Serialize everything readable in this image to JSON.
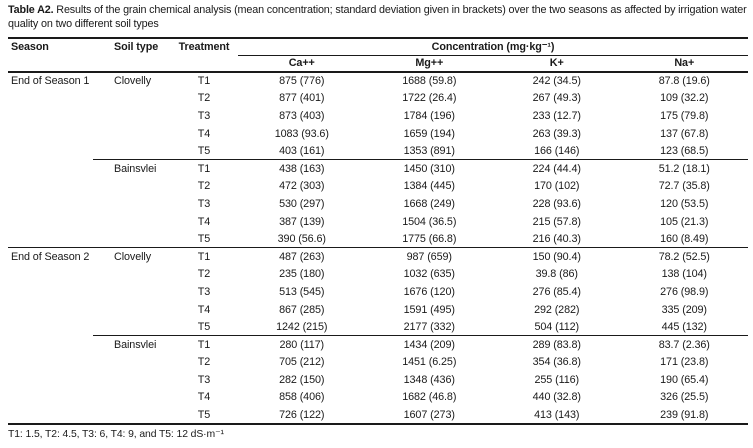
{
  "title": {
    "label": "Table A2.",
    "text": " Results of the grain chemical analysis (mean concentration; standard deviation given in brackets) over the two seasons as affected by irrigation water quality on two different soil types"
  },
  "table": {
    "headers": {
      "season": "Season",
      "soil_type": "Soil type",
      "treatment": "Treatment",
      "concentration": "Concentration (mg·kg⁻¹)",
      "analytes": [
        "Ca++",
        "Mg++",
        "K+",
        "Na+"
      ]
    },
    "groups": [
      {
        "season": "End of Season 1",
        "soil": "Clovelly",
        "divider": "none",
        "rows": [
          {
            "treatment": "T1",
            "ca": "875 (776)",
            "mg": "1688 (59.8)",
            "k": "242 (34.5)",
            "na": "87.8 (19.6)"
          },
          {
            "treatment": "T2",
            "ca": "877 (401)",
            "mg": "1722 (26.4)",
            "k": "267 (49.3)",
            "na": "109 (32.2)"
          },
          {
            "treatment": "T3",
            "ca": "873 (403)",
            "mg": "1784 (196)",
            "k": "233 (12.7)",
            "na": "175 (79.8)"
          },
          {
            "treatment": "T4",
            "ca": "1083 (93.6)",
            "mg": "1659 (194)",
            "k": "263 (39.3)",
            "na": "137 (67.8)"
          },
          {
            "treatment": "T5",
            "ca": "403 (161)",
            "mg": "1353 (891)",
            "k": "166 (146)",
            "na": "123 (68.5)"
          }
        ]
      },
      {
        "season": "",
        "soil": "Bainsvlei",
        "divider": "partial",
        "rows": [
          {
            "treatment": "T1",
            "ca": "438 (163)",
            "mg": "1450 (310)",
            "k": "224 (44.4)",
            "na": "51.2 (18.1)"
          },
          {
            "treatment": "T2",
            "ca": "472 (303)",
            "mg": "1384 (445)",
            "k": "170 (102)",
            "na": "72.7 (35.8)"
          },
          {
            "treatment": "T3",
            "ca": "530 (297)",
            "mg": "1668 (249)",
            "k": "228 (93.6)",
            "na": "120 (53.5)"
          },
          {
            "treatment": "T4",
            "ca": "387 (139)",
            "mg": "1504 (36.5)",
            "k": "215 (57.8)",
            "na": "105 (21.3)"
          },
          {
            "treatment": "T5",
            "ca": "390 (56.6)",
            "mg": "1775 (66.8)",
            "k": "216 (40.3)",
            "na": "160 (8.49)"
          }
        ]
      },
      {
        "season": "End of Season 2",
        "soil": "Clovelly",
        "divider": "full",
        "rows": [
          {
            "treatment": "T1",
            "ca": "487 (263)",
            "mg": "987 (659)",
            "k": "150 (90.4)",
            "na": "78.2 (52.5)"
          },
          {
            "treatment": "T2",
            "ca": "235 (180)",
            "mg": "1032 (635)",
            "k": "39.8 (86)",
            "na": "138 (104)"
          },
          {
            "treatment": "T3",
            "ca": "513 (545)",
            "mg": "1676 (120)",
            "k": "276 (85.4)",
            "na": "276 (98.9)"
          },
          {
            "treatment": "T4",
            "ca": "867 (285)",
            "mg": "1591 (495)",
            "k": "292 (282)",
            "na": "335 (209)"
          },
          {
            "treatment": "T5",
            "ca": "1242 (215)",
            "mg": "2177 (332)",
            "k": "504 (112)",
            "na": "445 (132)"
          }
        ]
      },
      {
        "season": "",
        "soil": "Bainsvlei",
        "divider": "partial",
        "rows": [
          {
            "treatment": "T1",
            "ca": "280 (117)",
            "mg": "1434 (209)",
            "k": "289 (83.8)",
            "na": "83.7 (2.36)"
          },
          {
            "treatment": "T2",
            "ca": "705 (212)",
            "mg": "1451 (6.25)",
            "k": "354 (36.8)",
            "na": "171 (23.8)"
          },
          {
            "treatment": "T3",
            "ca": "282 (150)",
            "mg": "1348 (436)",
            "k": "255 (116)",
            "na": "190 (65.4)"
          },
          {
            "treatment": "T4",
            "ca": "858 (406)",
            "mg": "1682 (46.8)",
            "k": "440 (32.8)",
            "na": "326 (25.5)"
          },
          {
            "treatment": "T5",
            "ca": "726 (122)",
            "mg": "1607 (273)",
            "k": "413 (143)",
            "na": "239 (91.8)"
          }
        ]
      }
    ]
  },
  "footnote": "T1: 1.5, T2: 4.5, T3: 6, T4: 9, and T5: 12 dS·m⁻¹"
}
